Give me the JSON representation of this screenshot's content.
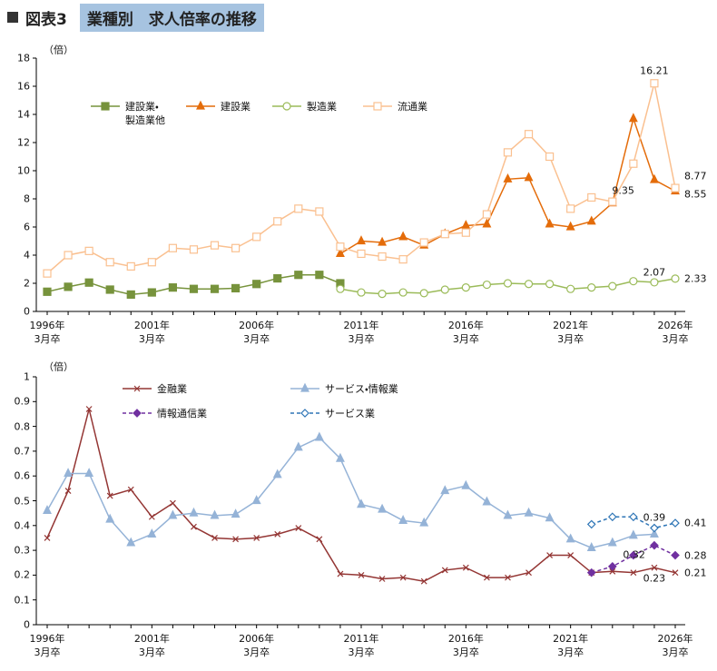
{
  "header": {
    "label": "図表3",
    "title": "業種別　求人倍率の推移"
  },
  "chart_data": [
    {
      "type": "line",
      "y_unit": "（倍）",
      "categories": [
        "1996年\n3月卒",
        null,
        null,
        null,
        null,
        "2001年\n3月卒",
        null,
        null,
        null,
        null,
        "2006年\n3月卒",
        null,
        null,
        null,
        null,
        "2011年\n3月卒",
        null,
        null,
        null,
        null,
        "2016年\n3月卒",
        null,
        null,
        null,
        null,
        "2021年\n3月卒",
        null,
        null,
        null,
        null,
        "2026年\n3月卒"
      ],
      "ylim": [
        0,
        18
      ],
      "yticks": [
        0,
        2,
        4,
        6,
        8,
        10,
        12,
        14,
        16,
        18
      ],
      "series": [
        {
          "name": "建設業・\n製造業他",
          "color": "#77933c",
          "marker": "square",
          "open": false,
          "dashed": false,
          "values": [
            1.4,
            1.75,
            2.05,
            1.55,
            1.2,
            1.35,
            1.7,
            1.6,
            1.6,
            1.65,
            1.95,
            2.35,
            2.6,
            2.6,
            2.0,
            null,
            null,
            null,
            null,
            null,
            null,
            null,
            null,
            null,
            null,
            null,
            null,
            null,
            null,
            null,
            null
          ]
        },
        {
          "name": "建設業",
          "color": "#e46c0a",
          "marker": "triangle",
          "open": false,
          "dashed": false,
          "values": [
            null,
            null,
            null,
            null,
            null,
            null,
            null,
            null,
            null,
            null,
            null,
            null,
            null,
            null,
            4.1,
            5.0,
            4.9,
            5.3,
            4.7,
            5.5,
            6.1,
            6.2,
            9.4,
            9.5,
            6.2,
            6.0,
            6.4,
            7.7,
            13.7,
            9.35,
            8.55
          ],
          "value_labels": [
            null,
            null,
            null,
            null,
            null,
            null,
            null,
            null,
            null,
            null,
            null,
            null,
            null,
            null,
            null,
            null,
            null,
            null,
            null,
            null,
            null,
            null,
            null,
            null,
            null,
            null,
            null,
            null,
            null,
            "9.35",
            "8.55"
          ]
        },
        {
          "name": "製造業",
          "color": "#9bbb59",
          "marker": "circle",
          "open": true,
          "dashed": false,
          "values": [
            null,
            null,
            null,
            null,
            null,
            null,
            null,
            null,
            null,
            null,
            null,
            null,
            null,
            null,
            1.6,
            1.35,
            1.25,
            1.35,
            1.3,
            1.55,
            1.7,
            1.9,
            2.0,
            1.95,
            1.95,
            1.6,
            1.7,
            1.8,
            2.15,
            2.07,
            2.33
          ],
          "value_labels": [
            null,
            null,
            null,
            null,
            null,
            null,
            null,
            null,
            null,
            null,
            null,
            null,
            null,
            null,
            null,
            null,
            null,
            null,
            null,
            null,
            null,
            null,
            null,
            null,
            null,
            null,
            null,
            null,
            null,
            "2.07",
            "2.33"
          ]
        },
        {
          "name": "流通業",
          "color": "#fac090",
          "marker": "square",
          "open": true,
          "dashed": false,
          "values": [
            2.7,
            4.0,
            4.3,
            3.5,
            3.2,
            3.5,
            4.5,
            4.4,
            4.7,
            4.5,
            5.3,
            6.4,
            7.3,
            7.1,
            4.6,
            4.1,
            3.9,
            3.7,
            4.9,
            5.5,
            5.6,
            6.9,
            11.3,
            12.6,
            11.0,
            7.3,
            8.1,
            7.8,
            10.5,
            16.21,
            8.77
          ],
          "value_labels": [
            null,
            null,
            null,
            null,
            null,
            null,
            null,
            null,
            null,
            null,
            null,
            null,
            null,
            null,
            null,
            null,
            null,
            null,
            null,
            null,
            null,
            null,
            null,
            null,
            null,
            null,
            null,
            null,
            null,
            "16.21",
            "8.77"
          ]
        }
      ]
    },
    {
      "type": "line",
      "y_unit": "（倍）",
      "categories": [
        "1996年\n3月卒",
        null,
        null,
        null,
        null,
        "2001年\n3月卒",
        null,
        null,
        null,
        null,
        "2006年\n3月卒",
        null,
        null,
        null,
        null,
        "2011年\n3月卒",
        null,
        null,
        null,
        null,
        "2016年\n3月卒",
        null,
        null,
        null,
        null,
        "2021年\n3月卒",
        null,
        null,
        null,
        null,
        "2026年\n3月卒"
      ],
      "ylim": [
        0,
        1
      ],
      "yticks": [
        0,
        0.1,
        0.2,
        0.3,
        0.4,
        0.5,
        0.6,
        0.7,
        0.8,
        0.9,
        1
      ],
      "series": [
        {
          "name": "金融業",
          "color": "#943634",
          "marker": "x",
          "open": false,
          "dashed": false,
          "values": [
            0.35,
            0.54,
            0.87,
            0.52,
            0.545,
            0.435,
            0.49,
            0.395,
            0.35,
            0.345,
            0.35,
            0.365,
            0.39,
            0.345,
            0.205,
            0.2,
            0.185,
            0.19,
            0.175,
            0.22,
            0.23,
            0.19,
            0.19,
            0.21,
            0.28,
            0.28,
            0.21,
            0.215,
            0.21,
            0.23,
            0.21
          ],
          "value_labels": [
            null,
            null,
            null,
            null,
            null,
            null,
            null,
            null,
            null,
            null,
            null,
            null,
            null,
            null,
            null,
            null,
            null,
            null,
            null,
            null,
            null,
            null,
            null,
            null,
            null,
            null,
            null,
            null,
            null,
            "0.23",
            "0.21"
          ]
        },
        {
          "name": "サービス・情報業",
          "color": "#95b3d7",
          "marker": "triangle",
          "open": false,
          "dashed": false,
          "values": [
            0.46,
            0.61,
            0.61,
            0.425,
            0.33,
            0.365,
            0.44,
            0.45,
            0.44,
            0.445,
            0.5,
            0.605,
            0.715,
            0.755,
            0.67,
            0.485,
            0.465,
            0.42,
            0.41,
            0.54,
            0.56,
            0.495,
            0.44,
            0.45,
            0.43,
            0.345,
            0.31,
            0.33,
            0.36,
            0.365,
            null
          ]
        },
        {
          "name": "情報通信業",
          "color": "#7030a0",
          "marker": "diamond",
          "open": false,
          "dashed": true,
          "values": [
            null,
            null,
            null,
            null,
            null,
            null,
            null,
            null,
            null,
            null,
            null,
            null,
            null,
            null,
            null,
            null,
            null,
            null,
            null,
            null,
            null,
            null,
            null,
            null,
            null,
            null,
            0.21,
            0.235,
            0.28,
            0.32,
            0.28
          ],
          "value_labels": [
            null,
            null,
            null,
            null,
            null,
            null,
            null,
            null,
            null,
            null,
            null,
            null,
            null,
            null,
            null,
            null,
            null,
            null,
            null,
            null,
            null,
            null,
            null,
            null,
            null,
            null,
            null,
            null,
            null,
            "0.32",
            "0.28"
          ]
        },
        {
          "name": "サービス業",
          "color": "#2e75b6",
          "marker": "diamond",
          "open": true,
          "dashed": true,
          "values": [
            null,
            null,
            null,
            null,
            null,
            null,
            null,
            null,
            null,
            null,
            null,
            null,
            null,
            null,
            null,
            null,
            null,
            null,
            null,
            null,
            null,
            null,
            null,
            null,
            null,
            null,
            0.405,
            0.435,
            0.435,
            0.39,
            0.41
          ],
          "value_labels": [
            null,
            null,
            null,
            null,
            null,
            null,
            null,
            null,
            null,
            null,
            null,
            null,
            null,
            null,
            null,
            null,
            null,
            null,
            null,
            null,
            null,
            null,
            null,
            null,
            null,
            null,
            null,
            null,
            null,
            "0.39",
            "0.41"
          ]
        }
      ]
    }
  ]
}
